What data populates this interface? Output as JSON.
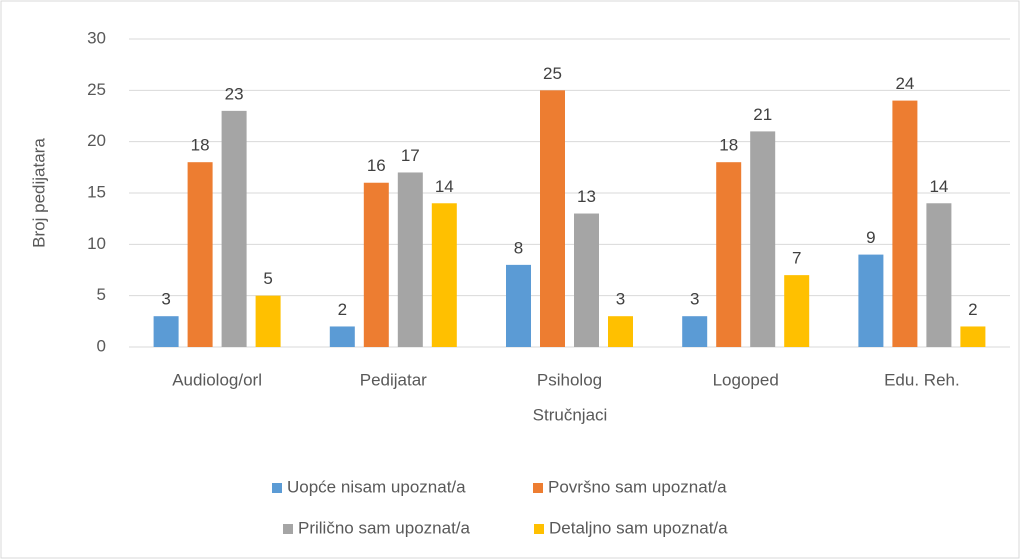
{
  "chart_data": {
    "type": "bar",
    "x_label": "Stručnjaci",
    "y_label": "Broj pedijatara",
    "categories": [
      "Audiolog/orl",
      "Pedijatar",
      "Psiholog",
      "Logoped",
      "Edu. Reh."
    ],
    "series": [
      {
        "name": "Uopće nisam upoznat/a",
        "color": "#5b9bd5",
        "values": [
          3,
          2,
          8,
          3,
          9
        ]
      },
      {
        "name": "Površno sam upoznat/a",
        "color": "#ed7d31",
        "values": [
          18,
          16,
          25,
          18,
          24
        ]
      },
      {
        "name": "Prilično sam upoznat/a",
        "color": "#a5a5a5",
        "values": [
          23,
          17,
          13,
          21,
          14
        ]
      },
      {
        "name": "Detaljno sam upoznat/a",
        "color": "#ffc000",
        "values": [
          5,
          14,
          3,
          7,
          2
        ]
      }
    ],
    "ylim": [
      0,
      30
    ],
    "yticks": [
      0,
      5,
      10,
      15,
      20,
      25,
      30
    ],
    "grid": true,
    "legend": "bottom"
  }
}
